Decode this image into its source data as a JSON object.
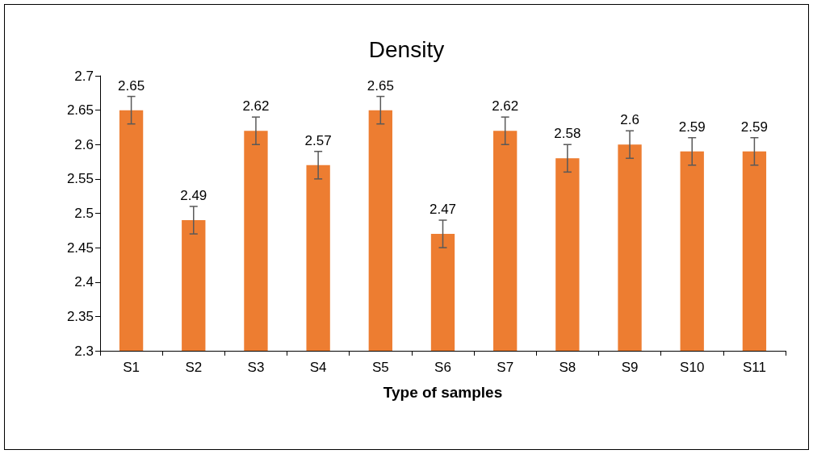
{
  "chart_data": {
    "type": "bar",
    "title": "Density",
    "xlabel": "Type of samples",
    "categories": [
      "S1",
      "S2",
      "S3",
      "S4",
      "S5",
      "S6",
      "S7",
      "S8",
      "S9",
      "S10",
      "S11"
    ],
    "values": [
      2.65,
      2.49,
      2.62,
      2.57,
      2.65,
      2.47,
      2.62,
      2.58,
      2.6,
      2.59,
      2.59
    ],
    "errors": [
      0.02,
      0.02,
      0.02,
      0.02,
      0.02,
      0.02,
      0.02,
      0.02,
      0.02,
      0.02,
      0.02
    ],
    "color": "#ed7d31",
    "ylim": [
      2.3,
      2.7
    ],
    "yticks": [
      2.3,
      2.35,
      2.4,
      2.45,
      2.5,
      2.55,
      2.6,
      2.65,
      2.7
    ],
    "data_labels": true
  }
}
